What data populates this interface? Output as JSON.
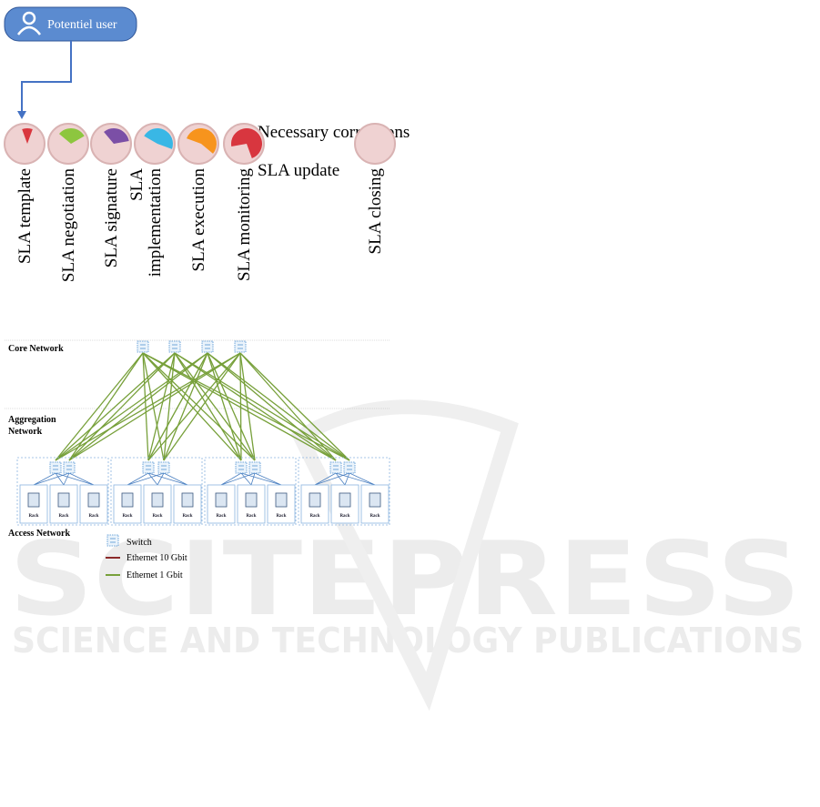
{
  "user": {
    "label": "Potentiel user"
  },
  "stages": [
    {
      "label": [
        "SLA template"
      ]
    },
    {
      "label": [
        "SLA negotiation"
      ]
    },
    {
      "label": [
        "SLA signature"
      ]
    },
    {
      "label": [
        "SLA",
        "implementation"
      ]
    },
    {
      "label": [
        "SLA execution"
      ]
    },
    {
      "label": [
        "SLA monitoring"
      ]
    },
    {
      "label": [
        "SLA closing"
      ]
    }
  ],
  "monitoring_notes": [
    "Necessary corrections",
    "SLA update"
  ],
  "network": {
    "layers": {
      "core": "Core Network",
      "aggregation": [
        "Aggregation",
        "Network"
      ],
      "access": "Access Network"
    },
    "racks": [
      "Rack",
      "Rack",
      "Rack",
      "Rack",
      "Rack",
      "Rack",
      "Rack",
      "Rack",
      "Rack",
      "Rack",
      "Rack",
      "Rack"
    ],
    "legend": {
      "switch": "Switch",
      "ethernet_10": "Ethernet 10 Gbit",
      "ethernet_1": "Ethernet 1 Gbit"
    }
  },
  "watermark": {
    "brand": "SCITEPRESS",
    "tagline": "SCIENCE AND TECHNOLOGY PUBLICATIONS"
  }
}
